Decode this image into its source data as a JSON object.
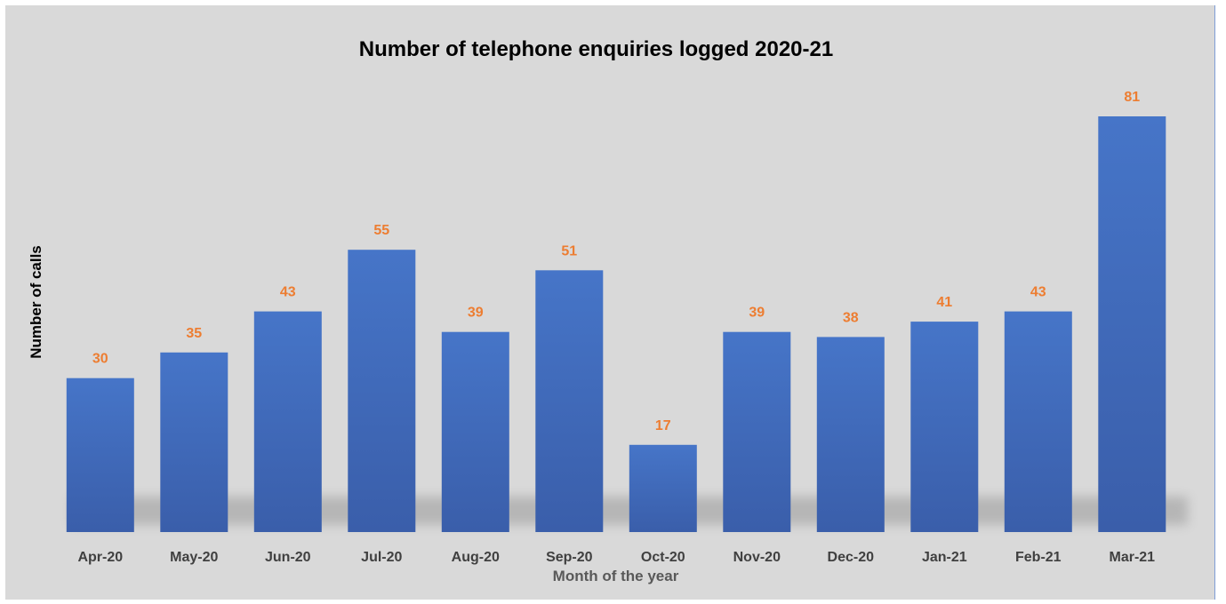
{
  "chart_data": {
    "type": "bar",
    "title": "Number of telephone enquiries logged 2020-21",
    "xlabel": "Month of the year",
    "ylabel": "Number of calls",
    "categories": [
      "Apr-20",
      "May-20",
      "Jun-20",
      "Jul-20",
      "Aug-20",
      "Sep-20",
      "Oct-20",
      "Nov-20",
      "Dec-20",
      "Jan-21",
      "Feb-21",
      "Mar-21"
    ],
    "values": [
      30,
      35,
      43,
      55,
      39,
      51,
      17,
      39,
      38,
      41,
      43,
      81
    ],
    "ylim": [
      0,
      81
    ],
    "grid": false,
    "legend": "none",
    "data_labels": true,
    "colors": {
      "bar": "#4472c4",
      "bar_dark": "#3a5faa",
      "data_label": "#ed7d31",
      "tick_label": "#404040",
      "background": "#d9d9d9"
    }
  }
}
